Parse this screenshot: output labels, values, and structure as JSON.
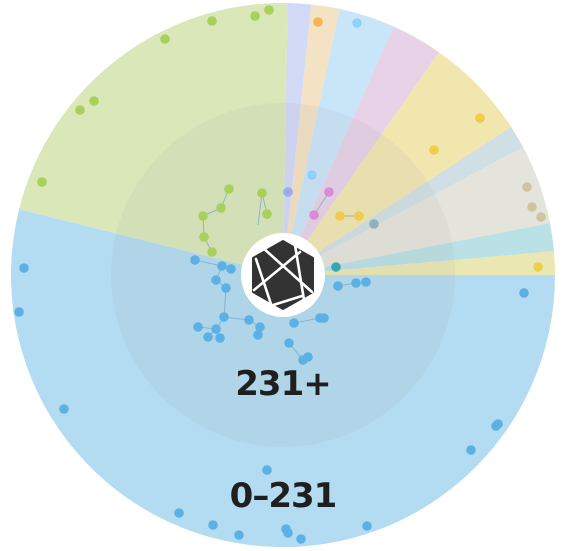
{
  "diagram": {
    "type": "radial-clustered-points",
    "labels": {
      "inner_ring": "231+",
      "outer_ring": "0–231"
    },
    "logo": {
      "icon": "hexagon-logo-icon",
      "colors": {
        "badge_bg": "#ffffff",
        "mark": "#333333"
      }
    },
    "sectors": [
      {
        "name": "sector-blue-large",
        "color": "#b3dcf2",
        "dot_color": "#5bb1e3"
      },
      {
        "name": "sector-green",
        "color": "#d9e7b9",
        "dot_color": "#a8d05a"
      },
      {
        "name": "sector-lavender",
        "color": "#d3daf8",
        "dot_color": "#9da9ef"
      },
      {
        "name": "sector-peach",
        "color": "#f4e2c4",
        "dot_color": "#f2b558"
      },
      {
        "name": "sector-light-blue",
        "color": "#c9e5f8",
        "dot_color": "#8dd2f7"
      },
      {
        "name": "sector-pink",
        "color": "#e7d2e8",
        "dot_color": "#d98bd6"
      },
      {
        "name": "sector-yellow",
        "color": "#f2e6af",
        "dot_color": "#f0cc4a"
      },
      {
        "name": "sector-slate",
        "color": "#d0dfe4",
        "dot_color": "#8fb1bd"
      },
      {
        "name": "sector-beige",
        "color": "#e5e4dc",
        "dot_color": "#cdc5a0"
      },
      {
        "name": "sector-teal",
        "color": "#b9e1e6",
        "dot_color": "#39a6b3"
      },
      {
        "name": "sector-yellow-small",
        "color": "#ebe7b2",
        "dot_color": "#e9d14b"
      }
    ],
    "colors": {
      "inner_ring": "#a9a9a9",
      "center_bg": "#ffffff",
      "label": "#1f1f1f"
    }
  }
}
